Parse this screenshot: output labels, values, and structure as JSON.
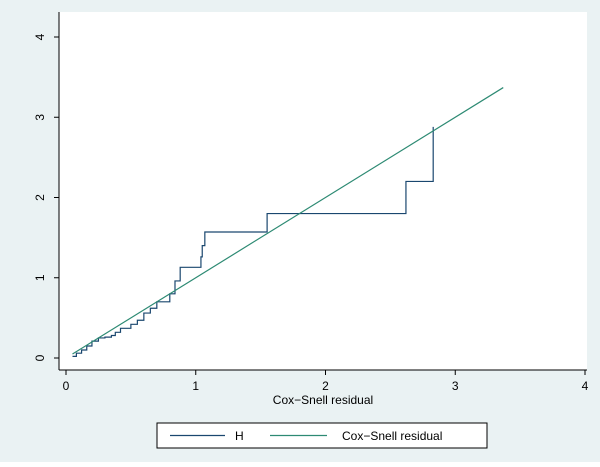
{
  "chart_data": {
    "type": "line",
    "title": "",
    "xlabel": "Cox−Snell residual",
    "ylabel": "",
    "xlim": [
      0,
      4
    ],
    "ylim": [
      0,
      4
    ],
    "x_ticks": [
      "0",
      "1",
      "2",
      "3",
      "4"
    ],
    "y_ticks": [
      "0",
      "1",
      "2",
      "3",
      "4"
    ],
    "grid": false,
    "legend": "bottom",
    "colors": {
      "background": "#eaf2f3",
      "plot_background": "#ffffff",
      "series_h": "#1a476f",
      "series_cs": "#2d8a73"
    },
    "series": [
      {
        "name": "H",
        "step": true,
        "points": [
          [
            0.05,
            0.02
          ],
          [
            0.08,
            0.06
          ],
          [
            0.12,
            0.1
          ],
          [
            0.16,
            0.15
          ],
          [
            0.2,
            0.21
          ],
          [
            0.25,
            0.25
          ],
          [
            0.3,
            0.26
          ],
          [
            0.35,
            0.28
          ],
          [
            0.38,
            0.32
          ],
          [
            0.42,
            0.37
          ],
          [
            0.5,
            0.42
          ],
          [
            0.55,
            0.47
          ],
          [
            0.6,
            0.56
          ],
          [
            0.65,
            0.62
          ],
          [
            0.7,
            0.7
          ],
          [
            0.8,
            0.8
          ],
          [
            0.84,
            0.96
          ],
          [
            0.88,
            1.13
          ],
          [
            1.04,
            1.26
          ],
          [
            1.05,
            1.4
          ],
          [
            1.07,
            1.57
          ],
          [
            1.55,
            1.8
          ],
          [
            1.95,
            1.8
          ],
          [
            2.62,
            2.2
          ],
          [
            2.83,
            2.88
          ]
        ]
      },
      {
        "name": "Cox−Snell residual",
        "step": false,
        "points": [
          [
            0.05,
            0.05
          ],
          [
            3.37,
            3.37
          ]
        ]
      }
    ]
  }
}
